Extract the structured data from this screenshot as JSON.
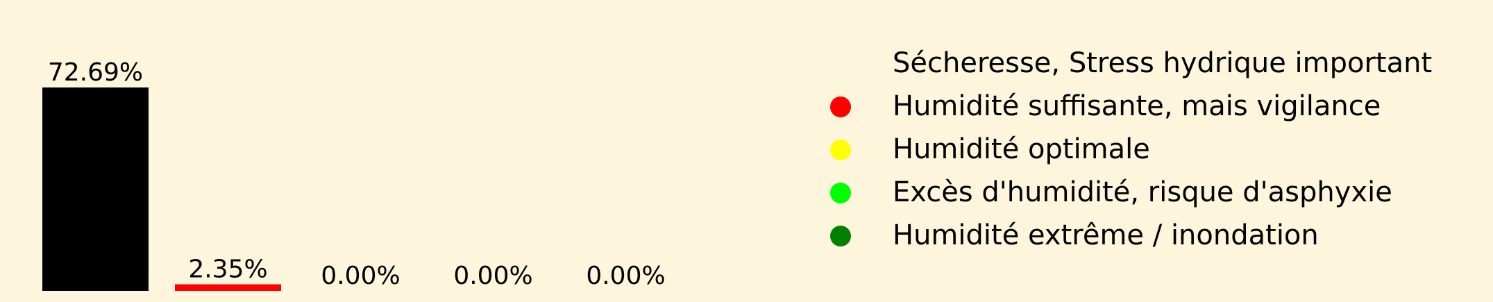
{
  "background_color": "#fdf5dc",
  "chart_data": {
    "type": "bar",
    "categories": [
      "Sécheresse, Stress hydrique important",
      "Humidité suffisante, mais vigilance",
      "Humidité optimale",
      "Excès d'humidité, risque d'asphyxie",
      "Humidité extrême / inondation"
    ],
    "values": [
      72.69,
      2.35,
      0.0,
      0.0,
      0.0
    ],
    "value_labels": [
      "72.69%",
      "2.35%",
      "0.00%",
      "0.00%",
      "0.00%"
    ],
    "colors": [
      "#000000",
      "#ff0000",
      "#ffff00",
      "#00ff00",
      "#008000"
    ],
    "unit": "%",
    "ylim": [
      0,
      75
    ],
    "axes_visible": false,
    "grid": false,
    "legend": {
      "placement": "right",
      "marker": "circle",
      "entries": [
        {
          "label": "Sécheresse, Stress hydrique important",
          "color": "#000000",
          "marker_visible": false
        },
        {
          "label": "Humidité suffisante, mais vigilance",
          "color": "#ff0000",
          "marker_visible": true
        },
        {
          "label": "Humidité optimale",
          "color": "#ffff00",
          "marker_visible": true
        },
        {
          "label": "Excès d'humidité, risque d'asphyxie",
          "color": "#00ff00",
          "marker_visible": true
        },
        {
          "label": "Humidité extrême / inondation",
          "color": "#008000",
          "marker_visible": true
        }
      ]
    }
  }
}
